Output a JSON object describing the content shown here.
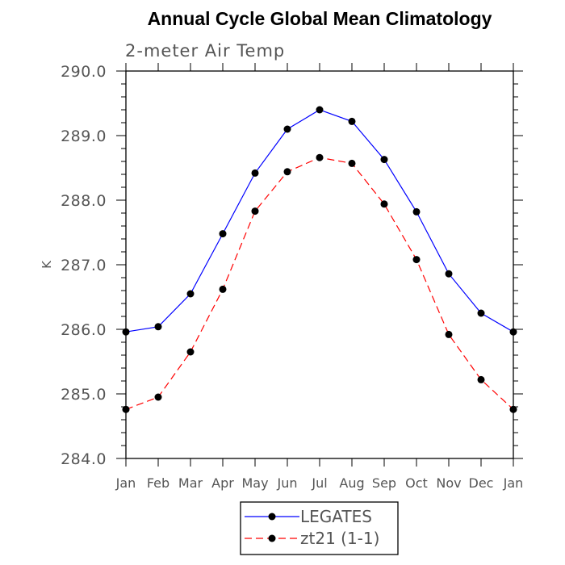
{
  "chart_data": {
    "type": "line",
    "title": "Annual Cycle Global Mean Climatology",
    "subtitle": "2-meter Air Temp",
    "xlabel": "",
    "ylabel": "K",
    "categories": [
      "Jan",
      "Feb",
      "Mar",
      "Apr",
      "May",
      "Jun",
      "Jul",
      "Aug",
      "Sep",
      "Oct",
      "Nov",
      "Dec",
      "Jan"
    ],
    "ylim": [
      284.0,
      290.0
    ],
    "yticks": [
      "284.0",
      "285.0",
      "286.0",
      "287.0",
      "288.0",
      "289.0",
      "290.0"
    ],
    "grid": false,
    "legend_position": "bottom",
    "series": [
      {
        "name": "LEGATES",
        "color": "#0000ff",
        "line_style": "solid",
        "values": [
          285.96,
          286.04,
          286.55,
          287.48,
          288.42,
          289.1,
          289.4,
          289.22,
          288.63,
          287.82,
          286.86,
          286.25,
          285.96
        ]
      },
      {
        "name": "zt21 (1-1)",
        "color": "#ff0000",
        "line_style": "dashed",
        "values": [
          284.76,
          284.95,
          285.65,
          286.62,
          287.83,
          288.44,
          288.66,
          288.57,
          287.94,
          287.08,
          285.92,
          285.22,
          284.76
        ]
      }
    ]
  }
}
